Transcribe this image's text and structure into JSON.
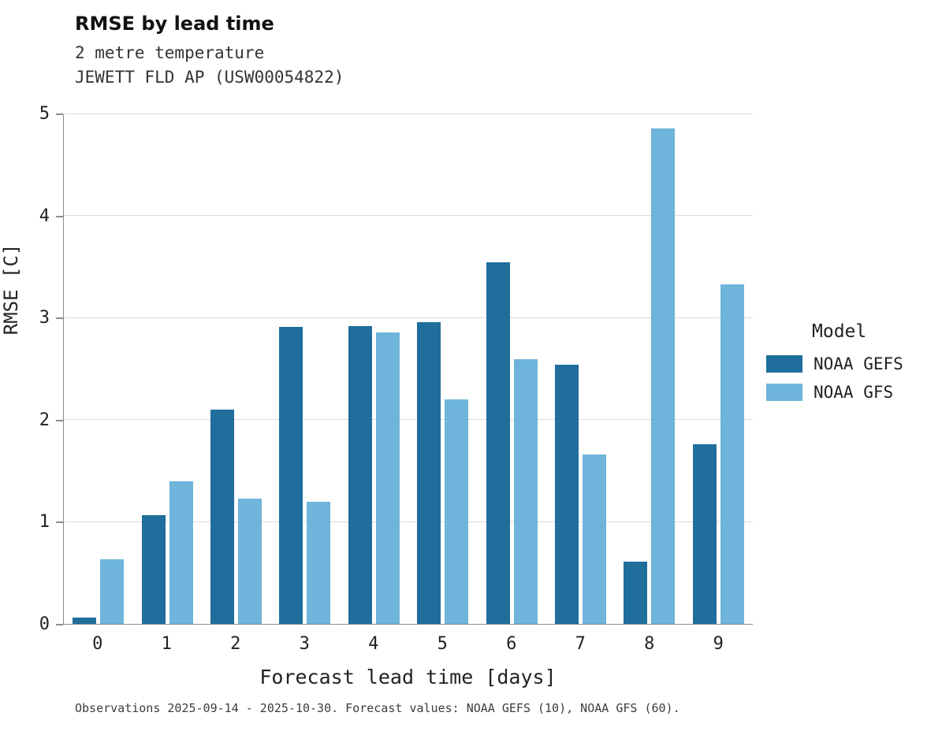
{
  "chart_data": {
    "type": "bar",
    "title": "RMSE by lead time",
    "subtitle": "2 metre temperature",
    "station": "JEWETT FLD AP (USW00054822)",
    "xlabel": "Forecast lead time [days]",
    "ylabel": "RMSE [C]",
    "legend_title": "Model",
    "categories": [
      "0",
      "1",
      "2",
      "3",
      "4",
      "5",
      "6",
      "7",
      "8",
      "9"
    ],
    "series": [
      {
        "name": "NOAA GEFS",
        "values": [
          0.06,
          1.07,
          2.1,
          2.91,
          2.92,
          2.96,
          3.55,
          2.54,
          0.61,
          1.76
        ]
      },
      {
        "name": "NOAA GFS",
        "values": [
          0.63,
          1.4,
          1.23,
          1.2,
          2.86,
          2.2,
          2.6,
          1.66,
          4.86,
          3.33
        ]
      }
    ],
    "colors": [
      "#1f6e9c",
      "#6fb4da"
    ],
    "ylim": [
      0,
      5
    ],
    "yticks": [
      0,
      1,
      2,
      3,
      4,
      5
    ],
    "grid": "horizontal",
    "legend_position": "right",
    "caption": "Observations 2025-09-14 - 2025-10-30. Forecast values: NOAA GEFS (10), NOAA GFS (60)."
  }
}
